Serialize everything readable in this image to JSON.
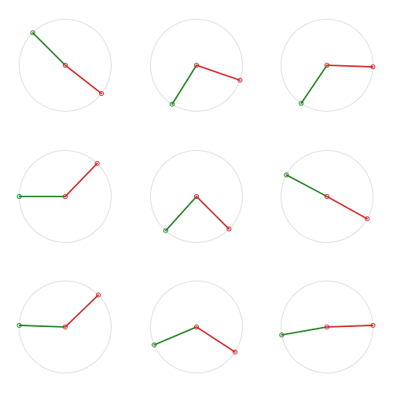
{
  "colors": {
    "background": "#ffffff",
    "circle_outline": "#dcdcdc",
    "first_segment": "#1a7f1a",
    "second_segment": "#d42020"
  },
  "puzzle": {
    "grid_rows": 3,
    "grid_cols": 3,
    "panels": [
      {
        "first_angle_deg": 135,
        "second_angle_deg": -38
      },
      {
        "first_angle_deg": -122,
        "second_angle_deg": -19
      },
      {
        "first_angle_deg": -124,
        "second_angle_deg": -2
      },
      {
        "first_angle_deg": 180,
        "second_angle_deg": 46
      },
      {
        "first_angle_deg": -132,
        "second_angle_deg": -45
      },
      {
        "first_angle_deg": 152,
        "second_angle_deg": -29
      },
      {
        "first_angle_deg": 178,
        "second_angle_deg": 44
      },
      {
        "first_angle_deg": -157,
        "second_angle_deg": -33
      },
      {
        "first_angle_deg": -170,
        "second_angle_deg": 2
      }
    ]
  }
}
